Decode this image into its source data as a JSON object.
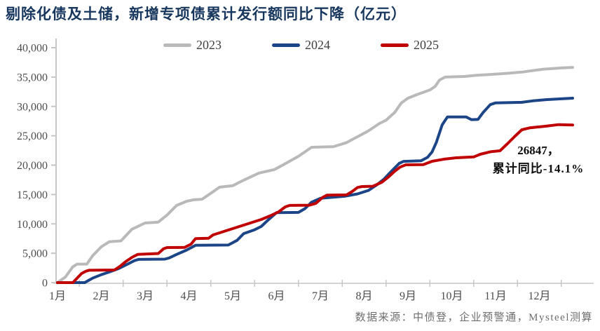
{
  "title": "剔除化债及土储，新增专项债累计发行额同比下降（亿元）",
  "title_color": "#17375e",
  "annotation": {
    "line1": "26847，",
    "line2": "累计同比-14.1%"
  },
  "source": "数据来源：中债登，企业预警通，Mysteel测算",
  "chart_data": {
    "type": "line",
    "title": "剔除化债及土储，新增专项债累计发行额同比下降（亿元）",
    "xlabel": "",
    "ylabel": "",
    "ylim": [
      0,
      40000
    ],
    "ytick_step": 5000,
    "ytick_labels": [
      "0",
      "5,000",
      "10,000",
      "15,000",
      "20,000",
      "25,000",
      "30,000",
      "35,000",
      "40,000"
    ],
    "x_categories": [
      "1月",
      "2月",
      "3月",
      "4月",
      "5月",
      "6月",
      "7月",
      "8月",
      "9月",
      "10月",
      "11月",
      "12月"
    ],
    "grid": false,
    "legend_position": "top",
    "axis_color": "#c6c6c6",
    "axis_label_color": "#4d4d4d",
    "series": [
      {
        "name": "2023",
        "color": "#b9b9b9",
        "points": [
          [
            1.0,
            0
          ],
          [
            1.18,
            950
          ],
          [
            1.35,
            2700
          ],
          [
            1.45,
            3150
          ],
          [
            1.67,
            3150
          ],
          [
            1.8,
            4550
          ],
          [
            2.0,
            6100
          ],
          [
            2.18,
            6950
          ],
          [
            2.45,
            7100
          ],
          [
            2.7,
            9100
          ],
          [
            3.0,
            10150
          ],
          [
            3.3,
            10300
          ],
          [
            3.5,
            11500
          ],
          [
            3.72,
            13150
          ],
          [
            3.95,
            13850
          ],
          [
            4.1,
            14100
          ],
          [
            4.3,
            14200
          ],
          [
            4.45,
            14950
          ],
          [
            4.7,
            16250
          ],
          [
            5.0,
            16500
          ],
          [
            5.25,
            17450
          ],
          [
            5.6,
            18650
          ],
          [
            5.95,
            19250
          ],
          [
            6.1,
            19850
          ],
          [
            6.5,
            21500
          ],
          [
            6.8,
            23050
          ],
          [
            7.3,
            23150
          ],
          [
            7.6,
            23850
          ],
          [
            7.9,
            25050
          ],
          [
            8.1,
            25850
          ],
          [
            8.35,
            27100
          ],
          [
            8.5,
            27650
          ],
          [
            8.7,
            29000
          ],
          [
            8.85,
            30600
          ],
          [
            9.0,
            31400
          ],
          [
            9.2,
            32000
          ],
          [
            9.35,
            32400
          ],
          [
            9.5,
            32800
          ],
          [
            9.62,
            33400
          ],
          [
            9.72,
            34500
          ],
          [
            9.85,
            35000
          ],
          [
            10.3,
            35100
          ],
          [
            10.55,
            35300
          ],
          [
            10.9,
            35450
          ],
          [
            11.3,
            35650
          ],
          [
            11.6,
            35850
          ],
          [
            11.9,
            36150
          ],
          [
            12.1,
            36350
          ],
          [
            12.5,
            36550
          ],
          [
            12.76,
            36650
          ]
        ]
      },
      {
        "name": "2024",
        "color": "#1c4587",
        "points": [
          [
            1.0,
            0
          ],
          [
            1.62,
            0
          ],
          [
            1.8,
            750
          ],
          [
            2.0,
            1350
          ],
          [
            2.18,
            1800
          ],
          [
            2.4,
            2400
          ],
          [
            2.6,
            3150
          ],
          [
            2.76,
            3750
          ],
          [
            2.85,
            3950
          ],
          [
            3.45,
            4000
          ],
          [
            3.55,
            4200
          ],
          [
            3.72,
            4800
          ],
          [
            3.95,
            5550
          ],
          [
            4.15,
            6350
          ],
          [
            4.9,
            6400
          ],
          [
            5.1,
            7200
          ],
          [
            5.25,
            8350
          ],
          [
            5.5,
            9000
          ],
          [
            5.65,
            9550
          ],
          [
            5.82,
            10750
          ],
          [
            6.0,
            11900
          ],
          [
            6.5,
            11950
          ],
          [
            6.65,
            12600
          ],
          [
            6.8,
            13700
          ],
          [
            7.0,
            14350
          ],
          [
            7.55,
            14700
          ],
          [
            7.85,
            15100
          ],
          [
            8.1,
            15700
          ],
          [
            8.3,
            16700
          ],
          [
            8.45,
            17600
          ],
          [
            8.6,
            18800
          ],
          [
            8.8,
            20300
          ],
          [
            8.9,
            20650
          ],
          [
            9.3,
            20750
          ],
          [
            9.45,
            21350
          ],
          [
            9.55,
            22250
          ],
          [
            9.65,
            23900
          ],
          [
            9.78,
            26850
          ],
          [
            9.9,
            28200
          ],
          [
            10.33,
            28200
          ],
          [
            10.45,
            27750
          ],
          [
            10.6,
            27800
          ],
          [
            10.72,
            29000
          ],
          [
            10.88,
            30300
          ],
          [
            11.0,
            30600
          ],
          [
            11.6,
            30700
          ],
          [
            11.85,
            30950
          ],
          [
            12.15,
            31150
          ],
          [
            12.5,
            31300
          ],
          [
            12.76,
            31400
          ]
        ]
      },
      {
        "name": "2025",
        "color": "#c00000",
        "points": [
          [
            1.0,
            0
          ],
          [
            1.35,
            0
          ],
          [
            1.55,
            1550
          ],
          [
            1.65,
            1950
          ],
          [
            1.72,
            2100
          ],
          [
            2.3,
            2150
          ],
          [
            2.42,
            2750
          ],
          [
            2.56,
            3600
          ],
          [
            2.71,
            4350
          ],
          [
            2.83,
            4800
          ],
          [
            3.3,
            4950
          ],
          [
            3.42,
            5750
          ],
          [
            3.5,
            5970
          ],
          [
            3.9,
            6000
          ],
          [
            4.05,
            6550
          ],
          [
            4.15,
            7500
          ],
          [
            4.45,
            7560
          ],
          [
            4.55,
            8120
          ],
          [
            4.8,
            8720
          ],
          [
            5.05,
            9310
          ],
          [
            5.3,
            9910
          ],
          [
            5.65,
            10750
          ],
          [
            5.85,
            11350
          ],
          [
            6.05,
            12060
          ],
          [
            6.2,
            12900
          ],
          [
            6.3,
            13150
          ],
          [
            6.75,
            13180
          ],
          [
            6.9,
            13500
          ],
          [
            7.05,
            14500
          ],
          [
            7.15,
            14890
          ],
          [
            7.6,
            14940
          ],
          [
            7.72,
            15480
          ],
          [
            7.85,
            16200
          ],
          [
            7.95,
            16360
          ],
          [
            8.2,
            16400
          ],
          [
            8.4,
            17070
          ],
          [
            8.55,
            17950
          ],
          [
            8.7,
            18990
          ],
          [
            8.82,
            19660
          ],
          [
            8.95,
            20060
          ],
          [
            9.35,
            20100
          ],
          [
            9.55,
            20660
          ],
          [
            9.85,
            21050
          ],
          [
            10.1,
            21250
          ],
          [
            10.5,
            21400
          ],
          [
            10.65,
            21850
          ],
          [
            10.9,
            22300
          ],
          [
            11.1,
            22450
          ],
          [
            11.27,
            23640
          ],
          [
            11.43,
            24830
          ],
          [
            11.6,
            26030
          ],
          [
            11.78,
            26350
          ],
          [
            12.12,
            26620
          ],
          [
            12.44,
            26900
          ],
          [
            12.76,
            26847
          ]
        ]
      }
    ],
    "annotation": {
      "value": 26847,
      "yoy": "-14.1%"
    }
  }
}
